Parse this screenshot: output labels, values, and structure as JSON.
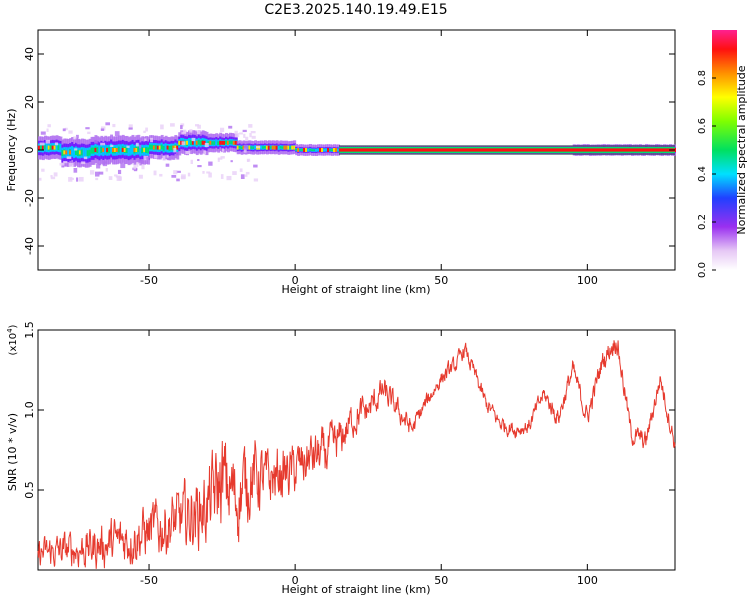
{
  "title": "C2E3.2025.140.19.49.E15",
  "chart_data": [
    {
      "type": "heatmap",
      "xlabel": "Height of straight line (km)",
      "ylabel": "Frequency (Hz)",
      "xlim": [
        -88,
        130
      ],
      "ylim": [
        -50,
        50
      ],
      "xticks": [
        -50,
        0,
        50,
        100
      ],
      "yticks": [
        40,
        20,
        0,
        -20,
        -40
      ],
      "ridge_segments": [
        {
          "x0": -88,
          "x1": -80,
          "center": 1,
          "halfwidth": 4
        },
        {
          "x0": -80,
          "x1": -70,
          "center": -1,
          "halfwidth": 5
        },
        {
          "x0": -70,
          "x1": -60,
          "center": 0,
          "halfwidth": 5
        },
        {
          "x0": -60,
          "x1": -50,
          "center": 0,
          "halfwidth": 5
        },
        {
          "x0": -50,
          "x1": -40,
          "center": 1,
          "halfwidth": 4
        },
        {
          "x0": -40,
          "x1": -30,
          "center": 3,
          "halfwidth": 4
        },
        {
          "x0": -30,
          "x1": -20,
          "center": 3,
          "halfwidth": 3
        },
        {
          "x0": -20,
          "x1": -10,
          "center": 1,
          "halfwidth": 2
        },
        {
          "x0": -10,
          "x1": 0,
          "center": 1,
          "halfwidth": 2
        },
        {
          "x0": 0,
          "x1": 15,
          "center": 0,
          "halfwidth": 1.5
        },
        {
          "x0": 15,
          "x1": 95,
          "center": 0,
          "halfwidth": 0.8
        },
        {
          "x0": 95,
          "x1": 130,
          "center": 0,
          "halfwidth": 1.5
        }
      ],
      "colorbar": {
        "label": "Normalized spectral amplitude",
        "ticks": [
          "0.0",
          "0.2",
          "0.4",
          "0.6",
          "0.8"
        ],
        "range": [
          0,
          1
        ]
      }
    },
    {
      "type": "line",
      "xlabel": "Height of straight line (km)",
      "ylabel": "SNR (10 * v/v)",
      "scale_note": "(x10",
      "scale_exp": "4",
      "xlim": [
        -88,
        130
      ],
      "ylim": [
        0,
        1.5
      ],
      "xticks": [
        -50,
        0,
        50,
        100
      ],
      "yticks": [
        "1.5",
        "1.0",
        "0.5"
      ],
      "color": "#e63a2e",
      "x": [
        -88,
        -80,
        -70,
        -60,
        -50,
        -40,
        -30,
        -25,
        -20,
        -15,
        -10,
        -5,
        0,
        5,
        10,
        15,
        20,
        25,
        30,
        35,
        40,
        45,
        50,
        55,
        58,
        62,
        65,
        70,
        75,
        80,
        85,
        90,
        95,
        100,
        105,
        110,
        115,
        120,
        125,
        130
      ],
      "y": [
        0.1,
        0.12,
        0.14,
        0.18,
        0.24,
        0.3,
        0.4,
        0.55,
        0.45,
        0.6,
        0.55,
        0.6,
        0.62,
        0.7,
        0.72,
        0.8,
        0.95,
        1.0,
        1.12,
        1.0,
        0.88,
        1.05,
        1.2,
        1.28,
        1.38,
        1.2,
        1.05,
        0.92,
        0.88,
        0.9,
        1.1,
        0.95,
        1.25,
        0.95,
        1.3,
        1.45,
        0.85,
        0.8,
        1.2,
        0.78
      ],
      "noise_amp": [
        0.09,
        0.1,
        0.12,
        0.14,
        0.16,
        0.18,
        0.22,
        0.28,
        0.25,
        0.22,
        0.18,
        0.16,
        0.15,
        0.15,
        0.14,
        0.12,
        0.1,
        0.09,
        0.08,
        0.07,
        0.06,
        0.05,
        0.05,
        0.05,
        0.05,
        0.05,
        0.05,
        0.05,
        0.05,
        0.05,
        0.05,
        0.06,
        0.06,
        0.06,
        0.07,
        0.07,
        0.06,
        0.06,
        0.06,
        0.06
      ]
    }
  ]
}
